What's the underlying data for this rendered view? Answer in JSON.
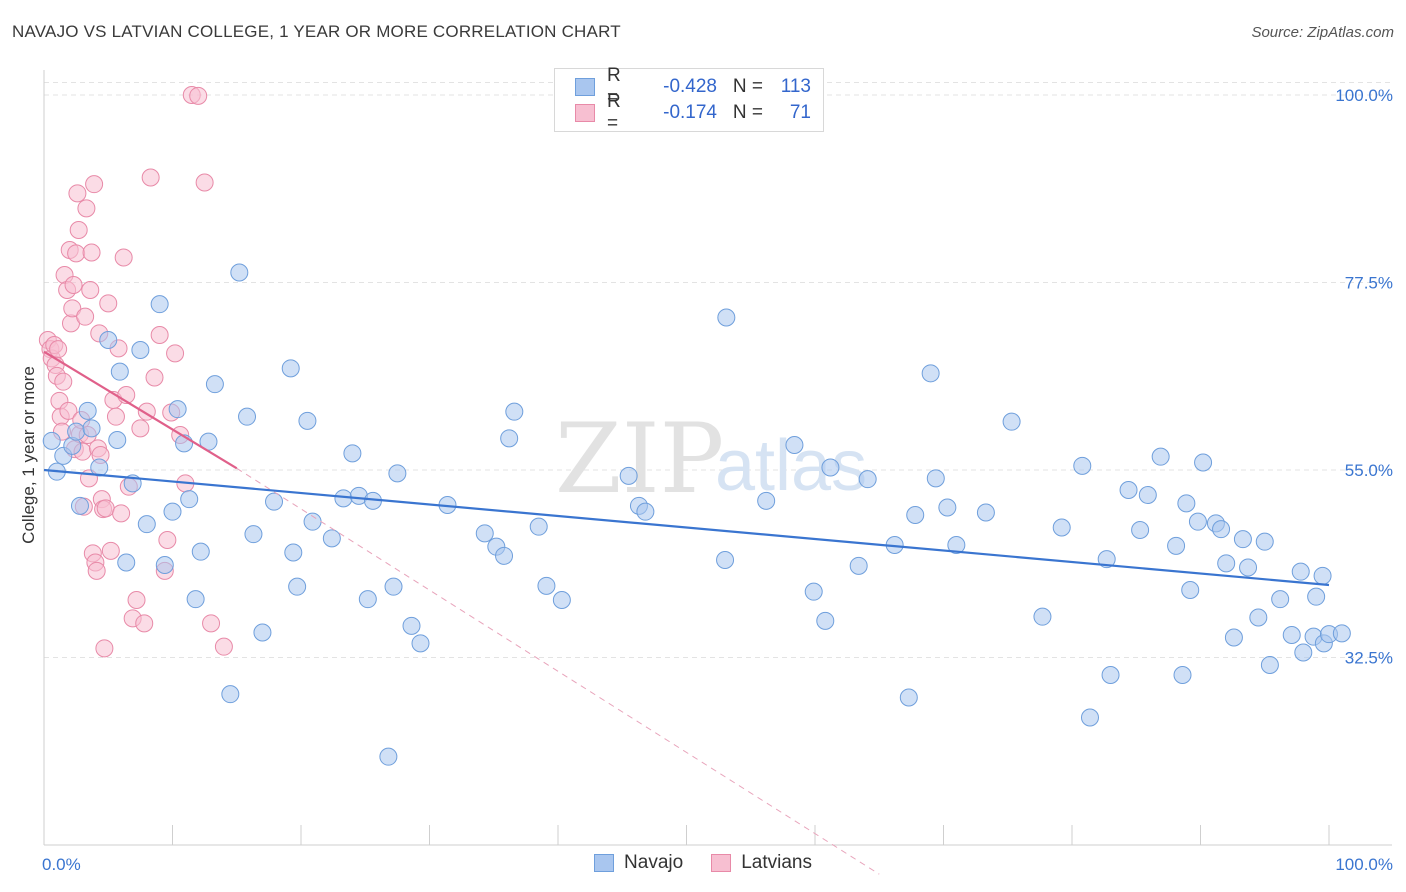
{
  "title": "NAVAJO VS LATVIAN COLLEGE, 1 YEAR OR MORE CORRELATION CHART",
  "source": "Source: ZipAtlas.com",
  "watermark": {
    "zip": "ZIP",
    "atlas": "atlas"
  },
  "legend": {
    "rows": [
      {
        "r_label": "R =",
        "r_value": "-0.428",
        "n_label": "N =",
        "n_value": "113",
        "color": "#a9c6ef",
        "border": "#6f9fdc"
      },
      {
        "r_label": "R =",
        "r_value": "-0.174",
        "n_label": "N =",
        "n_value": "71",
        "color": "#f7bfd1",
        "border": "#e88aa8"
      }
    ]
  },
  "bottom_legend": [
    {
      "name": "Navajo",
      "color": "#a9c6ef",
      "border": "#6f9fdc"
    },
    {
      "name": "Latvians",
      "color": "#f7bfd1",
      "border": "#e88aa8"
    }
  ],
  "chart_data": {
    "type": "scatter",
    "title": "NAVAJO VS LATVIAN COLLEGE, 1 YEAR OR MORE CORRELATION CHART",
    "xlabel": "",
    "ylabel": "College, 1 year or more",
    "xlim": [
      0,
      100
    ],
    "ylim": [
      10,
      103
    ],
    "x_tick_labels": [
      "0.0%",
      "100.0%"
    ],
    "y_ticks": [
      32.5,
      55.0,
      77.5,
      100.0
    ],
    "y_tick_labels": [
      "32.5%",
      "55.0%",
      "77.5%",
      "100.0%"
    ],
    "grid": true,
    "series": [
      {
        "name": "Navajo",
        "color": "#a9c6ef",
        "stroke": "#6f9fdc",
        "trend": {
          "x": [
            0,
            100
          ],
          "y": [
            55.0,
            41.2
          ],
          "color": "#3a75d0",
          "style": "solid"
        },
        "points": [
          {
            "x": 0.6,
            "y": 58.5
          },
          {
            "x": 1.5,
            "y": 56.7
          },
          {
            "x": 2.2,
            "y": 57.9
          },
          {
            "x": 1.0,
            "y": 54.8
          },
          {
            "x": 2.5,
            "y": 59.6
          },
          {
            "x": 2.8,
            "y": 50.7
          },
          {
            "x": 3.4,
            "y": 62.1
          },
          {
            "x": 3.7,
            "y": 60.0
          },
          {
            "x": 4.3,
            "y": 55.3
          },
          {
            "x": 5.0,
            "y": 70.6
          },
          {
            "x": 5.7,
            "y": 58.6
          },
          {
            "x": 5.9,
            "y": 66.8
          },
          {
            "x": 6.4,
            "y": 43.9
          },
          {
            "x": 6.9,
            "y": 53.4
          },
          {
            "x": 7.5,
            "y": 69.4
          },
          {
            "x": 8.0,
            "y": 48.5
          },
          {
            "x": 9.0,
            "y": 74.9
          },
          {
            "x": 9.4,
            "y": 43.6
          },
          {
            "x": 10.0,
            "y": 50.0
          },
          {
            "x": 10.4,
            "y": 62.3
          },
          {
            "x": 10.9,
            "y": 58.2
          },
          {
            "x": 11.3,
            "y": 51.5
          },
          {
            "x": 11.8,
            "y": 39.5
          },
          {
            "x": 12.2,
            "y": 45.2
          },
          {
            "x": 12.8,
            "y": 58.4
          },
          {
            "x": 13.3,
            "y": 65.3
          },
          {
            "x": 14.5,
            "y": 28.1
          },
          {
            "x": 15.2,
            "y": 78.7
          },
          {
            "x": 15.8,
            "y": 61.4
          },
          {
            "x": 16.3,
            "y": 47.3
          },
          {
            "x": 17.0,
            "y": 35.5
          },
          {
            "x": 17.9,
            "y": 51.2
          },
          {
            "x": 19.2,
            "y": 67.2
          },
          {
            "x": 19.4,
            "y": 45.1
          },
          {
            "x": 19.7,
            "y": 41.0
          },
          {
            "x": 20.5,
            "y": 60.9
          },
          {
            "x": 20.9,
            "y": 48.8
          },
          {
            "x": 22.4,
            "y": 46.8
          },
          {
            "x": 23.3,
            "y": 51.6
          },
          {
            "x": 24.0,
            "y": 57.0
          },
          {
            "x": 24.5,
            "y": 51.9
          },
          {
            "x": 25.2,
            "y": 39.5
          },
          {
            "x": 25.6,
            "y": 51.3
          },
          {
            "x": 26.8,
            "y": 20.6
          },
          {
            "x": 27.2,
            "y": 41.0
          },
          {
            "x": 27.5,
            "y": 54.6
          },
          {
            "x": 28.6,
            "y": 36.3
          },
          {
            "x": 29.3,
            "y": 34.2
          },
          {
            "x": 31.4,
            "y": 50.8
          },
          {
            "x": 34.3,
            "y": 47.4
          },
          {
            "x": 35.2,
            "y": 45.8
          },
          {
            "x": 35.8,
            "y": 44.7
          },
          {
            "x": 36.2,
            "y": 58.8
          },
          {
            "x": 36.6,
            "y": 62.0
          },
          {
            "x": 38.5,
            "y": 48.2
          },
          {
            "x": 39.1,
            "y": 41.1
          },
          {
            "x": 40.3,
            "y": 39.4
          },
          {
            "x": 45.5,
            "y": 54.3
          },
          {
            "x": 46.3,
            "y": 50.7
          },
          {
            "x": 46.8,
            "y": 50.0
          },
          {
            "x": 53.0,
            "y": 44.2
          },
          {
            "x": 53.1,
            "y": 73.3
          },
          {
            "x": 56.2,
            "y": 51.3
          },
          {
            "x": 58.4,
            "y": 58.0
          },
          {
            "x": 59.9,
            "y": 40.4
          },
          {
            "x": 60.8,
            "y": 36.9
          },
          {
            "x": 61.2,
            "y": 55.3
          },
          {
            "x": 63.4,
            "y": 43.5
          },
          {
            "x": 64.1,
            "y": 53.9
          },
          {
            "x": 66.2,
            "y": 46.0
          },
          {
            "x": 67.3,
            "y": 27.7
          },
          {
            "x": 67.8,
            "y": 49.6
          },
          {
            "x": 69.0,
            "y": 66.6
          },
          {
            "x": 69.4,
            "y": 54.0
          },
          {
            "x": 70.3,
            "y": 50.5
          },
          {
            "x": 71.0,
            "y": 46.0
          },
          {
            "x": 73.3,
            "y": 49.9
          },
          {
            "x": 75.3,
            "y": 60.8
          },
          {
            "x": 77.7,
            "y": 37.4
          },
          {
            "x": 79.2,
            "y": 48.1
          },
          {
            "x": 80.8,
            "y": 55.5
          },
          {
            "x": 81.4,
            "y": 25.3
          },
          {
            "x": 82.7,
            "y": 44.3
          },
          {
            "x": 83.0,
            "y": 30.4
          },
          {
            "x": 84.4,
            "y": 52.6
          },
          {
            "x": 85.3,
            "y": 47.8
          },
          {
            "x": 85.9,
            "y": 52.0
          },
          {
            "x": 86.9,
            "y": 56.6
          },
          {
            "x": 88.1,
            "y": 45.9
          },
          {
            "x": 88.6,
            "y": 30.4
          },
          {
            "x": 88.9,
            "y": 51.0
          },
          {
            "x": 89.2,
            "y": 40.6
          },
          {
            "x": 89.8,
            "y": 48.8
          },
          {
            "x": 90.2,
            "y": 55.9
          },
          {
            "x": 91.2,
            "y": 48.6
          },
          {
            "x": 91.6,
            "y": 47.9
          },
          {
            "x": 92.0,
            "y": 43.8
          },
          {
            "x": 92.6,
            "y": 34.9
          },
          {
            "x": 93.3,
            "y": 46.7
          },
          {
            "x": 93.7,
            "y": 43.3
          },
          {
            "x": 94.5,
            "y": 37.3
          },
          {
            "x": 95.0,
            "y": 46.4
          },
          {
            "x": 95.4,
            "y": 31.6
          },
          {
            "x": 96.2,
            "y": 39.5
          },
          {
            "x": 97.1,
            "y": 35.2
          },
          {
            "x": 97.8,
            "y": 42.8
          },
          {
            "x": 98.0,
            "y": 33.1
          },
          {
            "x": 98.8,
            "y": 35.0
          },
          {
            "x": 99.0,
            "y": 39.8
          },
          {
            "x": 99.5,
            "y": 42.3
          },
          {
            "x": 99.6,
            "y": 34.2
          },
          {
            "x": 100.0,
            "y": 35.3
          },
          {
            "x": 101.0,
            "y": 35.4
          }
        ]
      },
      {
        "name": "Latvians",
        "color": "#f7bfd1",
        "stroke": "#e88aa8",
        "trend": {
          "x": [
            0,
            15
          ],
          "y": [
            69.2,
            55.2
          ],
          "extended_to": [
            65,
            6.5
          ],
          "color": "#e0608a",
          "style": "solid-then-dashed"
        },
        "points": [
          {
            "x": 0.3,
            "y": 70.6
          },
          {
            "x": 0.5,
            "y": 69.5
          },
          {
            "x": 0.6,
            "y": 68.4
          },
          {
            "x": 0.8,
            "y": 70.0
          },
          {
            "x": 0.9,
            "y": 67.6
          },
          {
            "x": 1.0,
            "y": 66.3
          },
          {
            "x": 1.1,
            "y": 69.5
          },
          {
            "x": 1.2,
            "y": 63.3
          },
          {
            "x": 1.3,
            "y": 61.4
          },
          {
            "x": 1.4,
            "y": 59.6
          },
          {
            "x": 1.5,
            "y": 65.6
          },
          {
            "x": 1.6,
            "y": 78.4
          },
          {
            "x": 1.8,
            "y": 76.6
          },
          {
            "x": 1.9,
            "y": 62.1
          },
          {
            "x": 2.0,
            "y": 81.4
          },
          {
            "x": 2.1,
            "y": 72.6
          },
          {
            "x": 2.2,
            "y": 74.4
          },
          {
            "x": 2.3,
            "y": 77.2
          },
          {
            "x": 2.4,
            "y": 57.5
          },
          {
            "x": 2.5,
            "y": 81.0
          },
          {
            "x": 2.6,
            "y": 88.2
          },
          {
            "x": 2.7,
            "y": 83.8
          },
          {
            "x": 2.8,
            "y": 59.3
          },
          {
            "x": 2.9,
            "y": 61.0
          },
          {
            "x": 3.0,
            "y": 57.2
          },
          {
            "x": 3.1,
            "y": 50.6
          },
          {
            "x": 3.2,
            "y": 73.4
          },
          {
            "x": 3.3,
            "y": 86.4
          },
          {
            "x": 3.4,
            "y": 59.2
          },
          {
            "x": 3.5,
            "y": 54.0
          },
          {
            "x": 3.6,
            "y": 76.6
          },
          {
            "x": 3.7,
            "y": 81.1
          },
          {
            "x": 3.8,
            "y": 45.0
          },
          {
            "x": 3.9,
            "y": 89.3
          },
          {
            "x": 4.0,
            "y": 43.9
          },
          {
            "x": 4.1,
            "y": 42.9
          },
          {
            "x": 4.2,
            "y": 57.6
          },
          {
            "x": 4.3,
            "y": 71.4
          },
          {
            "x": 4.4,
            "y": 56.8
          },
          {
            "x": 4.5,
            "y": 51.5
          },
          {
            "x": 4.6,
            "y": 50.3
          },
          {
            "x": 4.7,
            "y": 33.6
          },
          {
            "x": 4.8,
            "y": 50.4
          },
          {
            "x": 5.0,
            "y": 75.0
          },
          {
            "x": 5.2,
            "y": 45.3
          },
          {
            "x": 5.4,
            "y": 63.4
          },
          {
            "x": 5.6,
            "y": 61.4
          },
          {
            "x": 5.8,
            "y": 69.6
          },
          {
            "x": 6.0,
            "y": 49.8
          },
          {
            "x": 6.2,
            "y": 80.5
          },
          {
            "x": 6.4,
            "y": 64.0
          },
          {
            "x": 6.6,
            "y": 53.0
          },
          {
            "x": 6.9,
            "y": 37.2
          },
          {
            "x": 7.2,
            "y": 39.4
          },
          {
            "x": 7.5,
            "y": 60.0
          },
          {
            "x": 7.8,
            "y": 36.6
          },
          {
            "x": 8.0,
            "y": 62.0
          },
          {
            "x": 8.3,
            "y": 90.1
          },
          {
            "x": 8.6,
            "y": 66.1
          },
          {
            "x": 9.0,
            "y": 71.2
          },
          {
            "x": 9.4,
            "y": 42.9
          },
          {
            "x": 9.6,
            "y": 46.6
          },
          {
            "x": 9.9,
            "y": 61.9
          },
          {
            "x": 10.2,
            "y": 69.0
          },
          {
            "x": 10.6,
            "y": 59.2
          },
          {
            "x": 11.0,
            "y": 53.4
          },
          {
            "x": 11.5,
            "y": 100.0
          },
          {
            "x": 12.0,
            "y": 99.9
          },
          {
            "x": 12.5,
            "y": 89.5
          },
          {
            "x": 13.0,
            "y": 36.6
          },
          {
            "x": 14.0,
            "y": 33.8
          }
        ]
      }
    ]
  }
}
